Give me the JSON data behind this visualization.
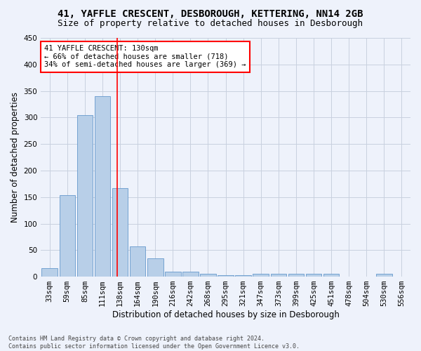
{
  "title": "41, YAFFLE CRESCENT, DESBOROUGH, KETTERING, NN14 2GB",
  "subtitle": "Size of property relative to detached houses in Desborough",
  "xlabel": "Distribution of detached houses by size in Desborough",
  "ylabel": "Number of detached properties",
  "categories": [
    "33sqm",
    "59sqm",
    "85sqm",
    "111sqm",
    "138sqm",
    "164sqm",
    "190sqm",
    "216sqm",
    "242sqm",
    "268sqm",
    "295sqm",
    "321sqm",
    "347sqm",
    "373sqm",
    "399sqm",
    "425sqm",
    "451sqm",
    "478sqm",
    "504sqm",
    "530sqm",
    "556sqm"
  ],
  "values": [
    16,
    153,
    305,
    340,
    167,
    57,
    34,
    10,
    9,
    6,
    3,
    3,
    5,
    5,
    5,
    5,
    5,
    0,
    0,
    5,
    0
  ],
  "bar_color": "#b8cfe8",
  "bar_edge_color": "#6699cc",
  "bg_color": "#eef2fb",
  "grid_color": "#c8d0df",
  "vline_color": "red",
  "annotation_line1": "41 YAFFLE CRESCENT: 130sqm",
  "annotation_line2": "← 66% of detached houses are smaller (718)",
  "annotation_line3": "34% of semi-detached houses are larger (369) →",
  "annotation_box_color": "white",
  "annotation_box_edge": "red",
  "footer": "Contains HM Land Registry data © Crown copyright and database right 2024.\nContains public sector information licensed under the Open Government Licence v3.0.",
  "ylim": [
    0,
    450
  ],
  "yticks": [
    0,
    50,
    100,
    150,
    200,
    250,
    300,
    350,
    400,
    450
  ],
  "title_fontsize": 10,
  "subtitle_fontsize": 9,
  "tick_fontsize": 7.5,
  "ylabel_fontsize": 8.5,
  "xlabel_fontsize": 8.5,
  "annotation_fontsize": 7.5,
  "footer_fontsize": 6
}
